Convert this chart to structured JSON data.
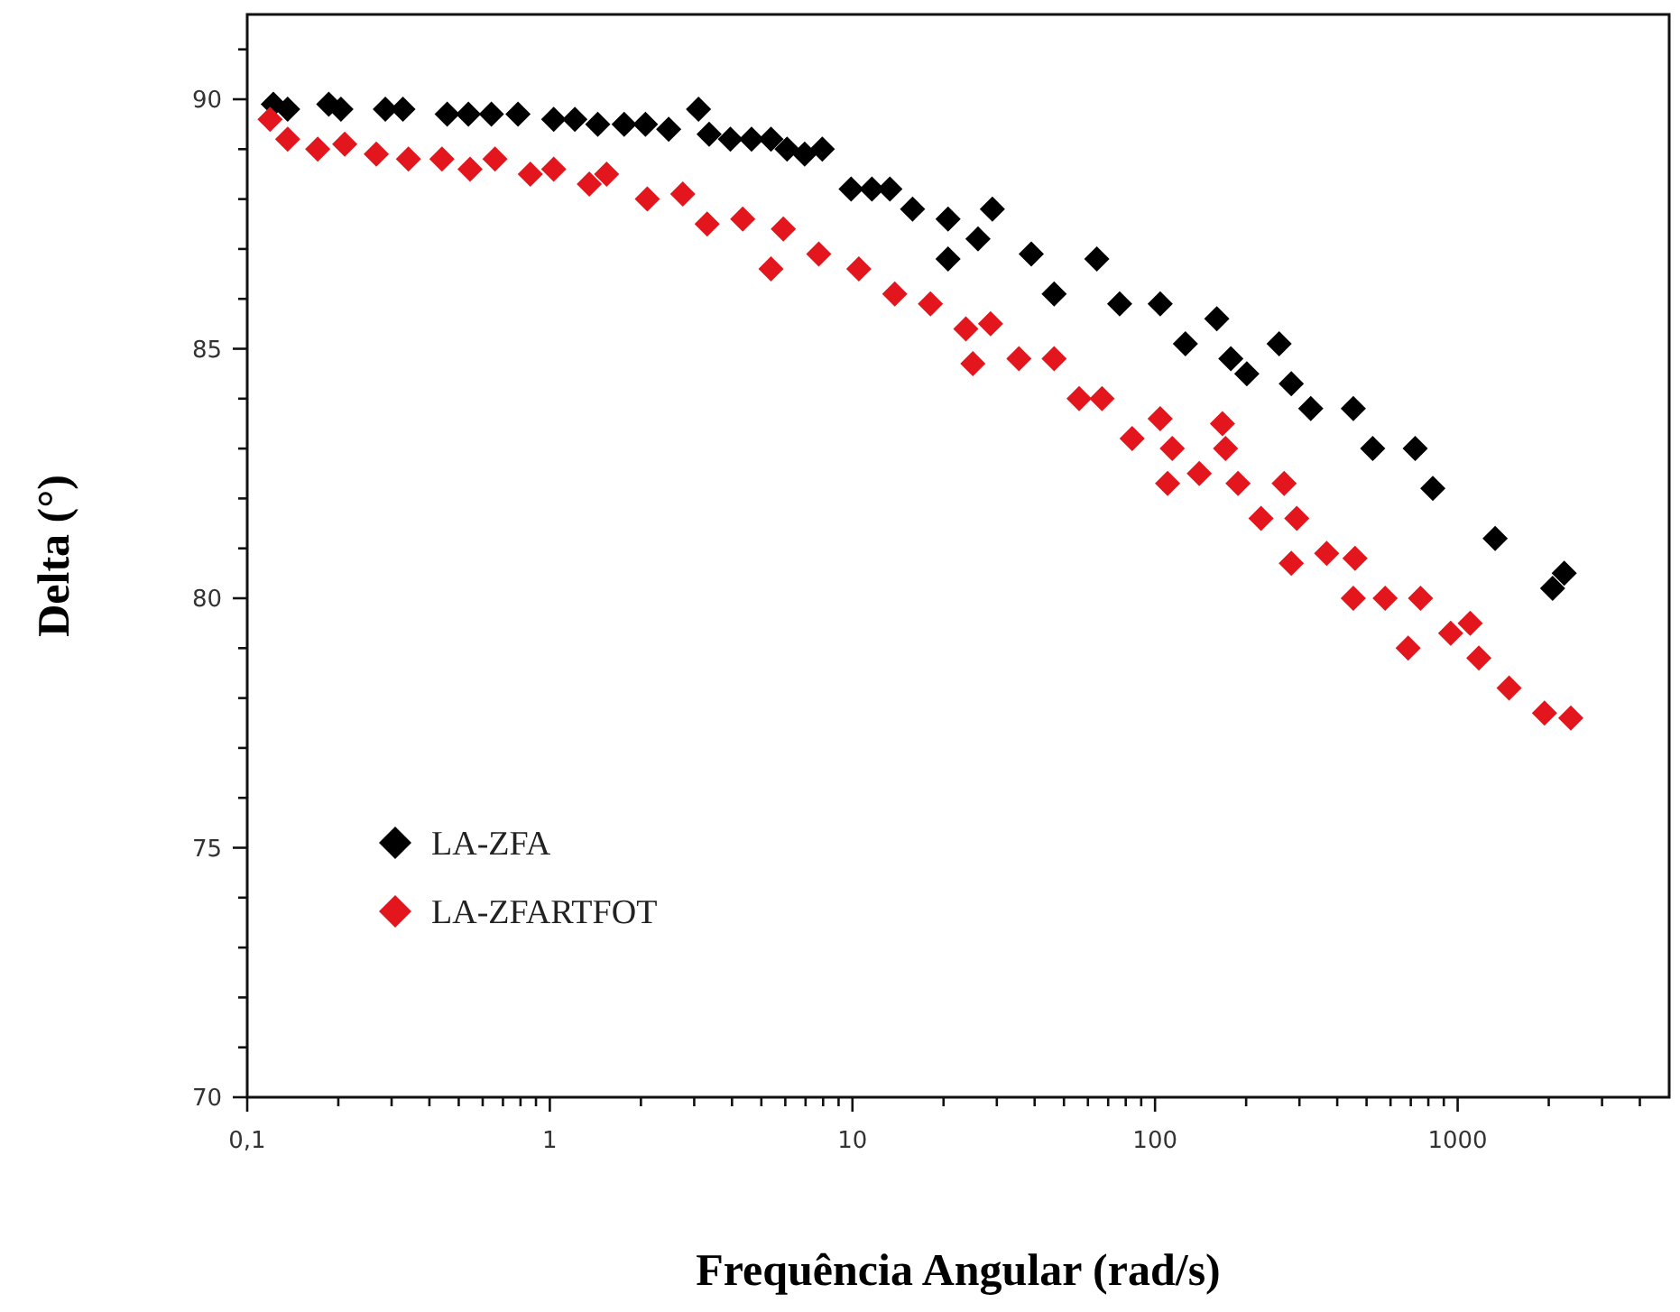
{
  "chart_data": {
    "type": "scatter",
    "xlabel": "Frequência Angular (rad/s)",
    "ylabel": "Delta (°)",
    "log": "x",
    "marker": "diamond",
    "legend": "bottom left",
    "grid": false,
    "xlim": [
      0.1,
      5000
    ],
    "ylim": [
      70,
      91.7
    ],
    "xticks": [
      {
        "value": 0.1,
        "label": "0,1"
      },
      {
        "value": 0.2,
        "label": null
      },
      {
        "value": 0.3,
        "label": null
      },
      {
        "value": 0.4,
        "label": null
      },
      {
        "value": 0.5,
        "label": null
      },
      {
        "value": 0.6,
        "label": null
      },
      {
        "value": 0.7,
        "label": null
      },
      {
        "value": 0.8,
        "label": null
      },
      {
        "value": 0.9,
        "label": null
      },
      1,
      {
        "value": 2,
        "label": null
      },
      {
        "value": 3,
        "label": null
      },
      {
        "value": 4,
        "label": null
      },
      {
        "value": 5,
        "label": null
      },
      {
        "value": 6,
        "label": null
      },
      {
        "value": 7,
        "label": null
      },
      {
        "value": 8,
        "label": null
      },
      {
        "value": 9,
        "label": null
      },
      10,
      {
        "value": 20,
        "label": null
      },
      {
        "value": 30,
        "label": null
      },
      {
        "value": 40,
        "label": null
      },
      {
        "value": 50,
        "label": null
      },
      {
        "value": 60,
        "label": null
      },
      {
        "value": 70,
        "label": null
      },
      {
        "value": 80,
        "label": null
      },
      {
        "value": 90,
        "label": null
      },
      100,
      {
        "value": 200,
        "label": null
      },
      {
        "value": 300,
        "label": null
      },
      {
        "value": 400,
        "label": null
      },
      {
        "value": 500,
        "label": null
      },
      {
        "value": 600,
        "label": null
      },
      {
        "value": 700,
        "label": null
      },
      {
        "value": 800,
        "label": null
      },
      {
        "value": 900,
        "label": null
      },
      1000,
      {
        "value": 2000,
        "label": null
      },
      {
        "value": 3000,
        "label": null
      },
      {
        "value": 4000,
        "label": null
      }
    ],
    "yticks": [
      70,
      {
        "value": 71,
        "label": null
      },
      {
        "value": 72,
        "label": null
      },
      {
        "value": 73,
        "label": null
      },
      {
        "value": 74,
        "label": null
      },
      75,
      {
        "value": 76,
        "label": null
      },
      {
        "value": 77,
        "label": null
      },
      {
        "value": 78,
        "label": null
      },
      {
        "value": 79,
        "label": null
      },
      80,
      {
        "value": 81,
        "label": null
      },
      {
        "value": 82,
        "label": null
      },
      {
        "value": 83,
        "label": null
      },
      {
        "value": 84,
        "label": null
      },
      85,
      {
        "value": 86,
        "label": null
      },
      {
        "value": 87,
        "label": null
      },
      {
        "value": 88,
        "label": null
      },
      {
        "value": 89,
        "label": null
      },
      90,
      {
        "value": 91,
        "label": null
      }
    ],
    "series": [
      {
        "name": "LA-ZFA",
        "color": "#000000",
        "x": [
          0.122,
          0.136,
          0.186,
          0.204,
          0.286,
          0.327,
          0.458,
          0.538,
          0.641,
          0.785,
          1.03,
          1.21,
          1.44,
          1.76,
          2.07,
          2.47,
          3.1,
          3.36,
          3.95,
          4.64,
          5.38,
          6.08,
          6.95,
          7.95,
          9.9,
          11.6,
          13.3,
          15.8,
          20.7,
          20.7,
          26,
          29,
          39,
          46.4,
          64.2,
          76.4,
          104,
          126,
          160,
          178,
          201,
          257,
          282,
          327,
          452,
          524,
          724,
          828,
          1330,
          2060,
          2250
        ],
        "values": [
          89.9,
          89.8,
          89.9,
          89.8,
          89.8,
          89.8,
          89.7,
          89.7,
          89.7,
          89.7,
          89.6,
          89.6,
          89.5,
          89.5,
          89.5,
          89.4,
          89.8,
          89.3,
          89.2,
          89.2,
          89.2,
          89.0,
          88.9,
          89.0,
          88.2,
          88.2,
          88.2,
          87.8,
          87.6,
          86.8,
          87.2,
          87.8,
          86.9,
          86.1,
          86.8,
          85.9,
          85.9,
          85.1,
          85.6,
          84.8,
          84.5,
          85.1,
          84.3,
          83.8,
          83.8,
          83.0,
          83.0,
          82.2,
          81.2,
          80.2,
          80.5
        ]
      },
      {
        "name": "LA-ZFARTFOT",
        "color": "#e3161e",
        "x": [
          0.119,
          0.136,
          0.171,
          0.21,
          0.267,
          0.341,
          0.44,
          0.545,
          0.659,
          0.862,
          1.03,
          1.35,
          1.54,
          2.1,
          2.75,
          3.31,
          4.34,
          5.38,
          5.91,
          7.74,
          10.5,
          13.8,
          18.1,
          23.7,
          25,
          28.6,
          35.5,
          46.4,
          56.1,
          66.8,
          84,
          104,
          114,
          110,
          140,
          167,
          171,
          188,
          224,
          267,
          294,
          282,
          369,
          458,
          452,
          576,
          754,
          686,
          948,
          1100,
          1175,
          1479,
          1936,
          2366
        ],
        "values": [
          89.6,
          89.2,
          89.0,
          89.1,
          88.9,
          88.8,
          88.8,
          88.6,
          88.8,
          88.5,
          88.6,
          88.3,
          88.5,
          88.0,
          88.1,
          87.5,
          87.6,
          86.6,
          87.4,
          86.9,
          86.6,
          86.1,
          85.9,
          85.4,
          84.7,
          85.5,
          84.8,
          84.8,
          84.0,
          84.0,
          83.2,
          83.6,
          83.0,
          82.3,
          82.5,
          83.5,
          83.0,
          82.3,
          81.6,
          82.3,
          81.6,
          80.7,
          80.9,
          80.8,
          80.0,
          80.0,
          80.0,
          79.0,
          79.3,
          79.5,
          78.8,
          78.2,
          77.7,
          77.6
        ]
      }
    ]
  }
}
